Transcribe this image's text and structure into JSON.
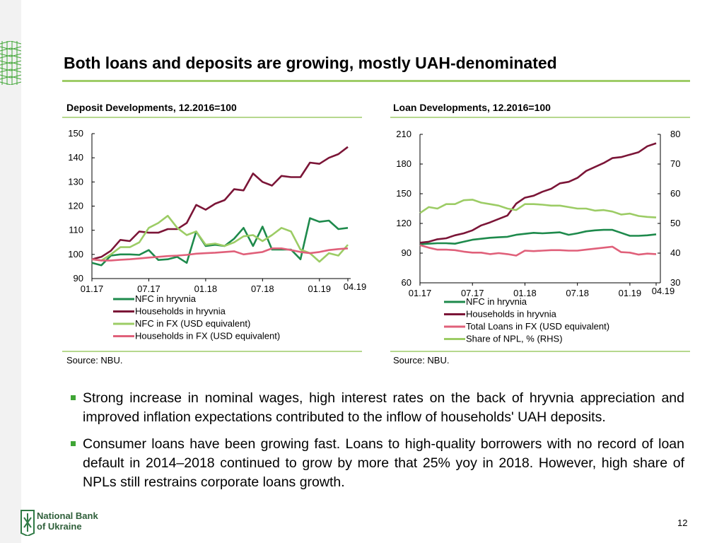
{
  "slide": {
    "title": "Both loans and deposits are growing, mostly UAH-denominated",
    "page_number": "12",
    "logo_lines": [
      "National Bank",
      "of Ukraine"
    ],
    "bullets": [
      "Strong increase in nominal wages, high interest rates on the back of hryvnia appreciation and improved inflation expectations contributed to the inflow of households' UAH deposits.",
      "Consumer loans have been growing fast. Loans to high-quality borrowers with no record of loan default in 2014–2018 continued to grow by more that 25% yoy in 2018. However, high share of NPLs still restrains corporate loans growth."
    ],
    "colors": {
      "accent": "#9ecc67",
      "bullet": "#3fa535"
    }
  },
  "chart_data": [
    {
      "type": "line",
      "title": "Deposit Developments, 12.2016=100",
      "source": "Source: NBU.",
      "xlabels": [
        "01.17",
        "07.17",
        "01.18",
        "07.18",
        "01.19",
        "04.19"
      ],
      "ylim": [
        90,
        150
      ],
      "yticks": [
        90,
        100,
        110,
        120,
        130,
        140,
        150
      ],
      "legend_position": "bottom",
      "grid": false,
      "series": [
        {
          "name": "NFC in hryvnia",
          "color": "#1e8a4c",
          "values": [
            96.5,
            95.5,
            99.5,
            100,
            100,
            99.8,
            101.8,
            97.7,
            98,
            99,
            96.5,
            109.5,
            103.5,
            104,
            103.5,
            106.5,
            111,
            103.5,
            111.5,
            102,
            102,
            102,
            98,
            115,
            113.5,
            114,
            110.5,
            111
          ]
        },
        {
          "name": "Households in hryvnia",
          "color": "#7b1537",
          "values": [
            98,
            99,
            101.5,
            106,
            105.5,
            109.5,
            109,
            109,
            110.5,
            110.5,
            113,
            120.5,
            118.5,
            121,
            122.5,
            127,
            126.5,
            133.5,
            130,
            128.5,
            132.5,
            132,
            132,
            138,
            137.5,
            140,
            141.5,
            144.5
          ]
        },
        {
          "name": "NFC in FX (USD equivalent)",
          "color": "#9ccc65",
          "values": [
            98,
            97.5,
            100,
            103,
            103,
            105,
            111,
            113,
            116,
            111,
            108,
            109.5,
            104,
            104.5,
            103.5,
            105,
            107.5,
            108,
            105.5,
            108,
            111,
            109.5,
            102,
            100.5,
            97,
            100.5,
            99.5,
            104
          ]
        },
        {
          "name": "Households in FX (USD equivalent)",
          "color": "#e0607a",
          "values": [
            98,
            97.5,
            97.5,
            97.8,
            98,
            98.3,
            98.7,
            99,
            99.3,
            99.5,
            99.8,
            100.3,
            100.5,
            100.7,
            101,
            101.3,
            100,
            100.5,
            101,
            102.5,
            102.5,
            101.8,
            101,
            100.5,
            101,
            101.8,
            102.2,
            102.5
          ]
        }
      ]
    },
    {
      "type": "line",
      "title": "Loan Developments, 12.2016=100",
      "source": "Source: NBU.",
      "xlabels": [
        "01.17",
        "07.17",
        "01.18",
        "07.18",
        "01.19",
        "04.19"
      ],
      "ylim": [
        60,
        210
      ],
      "yticks": [
        60,
        90,
        120,
        150,
        180,
        210
      ],
      "y2lim": [
        30,
        80
      ],
      "y2ticks": [
        30,
        40,
        50,
        60,
        70,
        80
      ],
      "legend_position": "bottom",
      "grid": false,
      "series": [
        {
          "name": "NFC in hryvnia",
          "color": "#1e8a4c",
          "axis": "left",
          "values": [
            99,
            99.5,
            100,
            100,
            99.5,
            101.5,
            103.5,
            104.5,
            105.5,
            106,
            106.5,
            108.5,
            109.5,
            110.5,
            110,
            110.5,
            111,
            108.5,
            110,
            112,
            113,
            113.5,
            113.5,
            110.5,
            107.5,
            107.5,
            108,
            109
          ]
        },
        {
          "name": "Households in hryvnia",
          "color": "#7b1537",
          "axis": "left",
          "values": [
            100.5,
            101.5,
            104,
            105,
            108,
            110,
            113,
            118,
            121,
            124.5,
            128,
            140,
            146,
            148,
            152,
            155,
            160.5,
            162,
            166,
            173,
            177,
            181,
            186,
            187,
            189.5,
            192,
            198,
            201
          ]
        },
        {
          "name": "Total Loans in FX (USD equivalent)",
          "color": "#e0607a",
          "axis": "left",
          "values": [
            98,
            95.5,
            93.5,
            93.5,
            93,
            91.5,
            90.5,
            90.5,
            89,
            90,
            89,
            87.5,
            92.5,
            92,
            92.5,
            93,
            93,
            92.5,
            92.5,
            93.5,
            94.5,
            95.5,
            96.5,
            91,
            90.5,
            88.5,
            89.5,
            89
          ]
        },
        {
          "name": "Share of NPL, % (RHS)",
          "color": "#9ccc65",
          "axis": "right",
          "values": [
            53.5,
            55.5,
            55,
            56.5,
            56.5,
            57.8,
            58,
            57,
            56.5,
            56,
            55,
            54.5,
            56.5,
            56.5,
            56.3,
            56,
            56,
            55.5,
            55,
            55,
            54.3,
            54.5,
            54,
            53,
            53.3,
            52.5,
            52.2,
            52
          ]
        }
      ]
    }
  ]
}
